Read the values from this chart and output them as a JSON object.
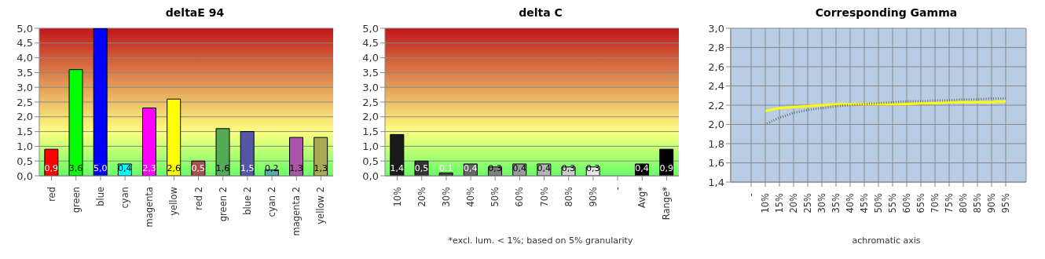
{
  "chart_data": [
    {
      "type": "bar",
      "title": "deltaE 94",
      "categories": [
        "red",
        "green",
        "blue",
        "cyan",
        "magenta",
        "yellow",
        "red 2",
        "green 2",
        "blue 2",
        "cyan 2",
        "magenta 2",
        "yellow 2"
      ],
      "values": [
        0.9,
        3.6,
        5.0,
        0.4,
        2.3,
        2.6,
        0.5,
        1.6,
        1.5,
        0.2,
        1.3,
        1.3
      ],
      "colors": [
        "#ff0000",
        "#00ff00",
        "#0000ff",
        "#00ffff",
        "#ff00ff",
        "#ffff00",
        "#a85050",
        "#55aa55",
        "#5555aa",
        "#55aaaa",
        "#aa55aa",
        "#aaaa55"
      ],
      "value_labels": [
        "0,9",
        "3,6",
        "5,0",
        "0,4",
        "2,3",
        "2,6",
        "0,5",
        "1,6",
        "1,5",
        "0,2",
        "1,3",
        "1,3"
      ],
      "ylim": [
        0,
        5
      ],
      "yticks": [
        {
          "value": 0,
          "label": "0,0"
        },
        {
          "value": 0.5,
          "label": "0,5"
        },
        {
          "value": 1,
          "label": "1,0"
        },
        {
          "value": 1.5,
          "label": "1,5"
        },
        {
          "value": 2,
          "label": "2,0"
        },
        {
          "value": 2.5,
          "label": "2,5"
        },
        {
          "value": 3,
          "label": "3,0"
        },
        {
          "value": 3.5,
          "label": "3,5"
        },
        {
          "value": 4,
          "label": "4,0"
        },
        {
          "value": 4.5,
          "label": "4,5"
        },
        {
          "value": 5,
          "label": "5,0"
        }
      ],
      "grid": "y"
    },
    {
      "type": "bar",
      "title": "delta C",
      "categories": [
        "10%",
        "20%",
        "30%",
        "40%",
        "50%",
        "60%",
        "70%",
        "80%",
        "90%",
        "-",
        "Avg*",
        "Range*"
      ],
      "values": [
        1.4,
        0.5,
        0.1,
        0.4,
        0.3,
        0.4,
        0.4,
        0.3,
        0.3,
        null,
        0.4,
        0.9
      ],
      "colors": [
        "#1a1a1a",
        "#333333",
        "#444444",
        "#666666",
        "#808080",
        "#999999",
        "#b3b3b3",
        "#cccccc",
        "#e6e6e6",
        "#000000",
        "#000000",
        "#000000"
      ],
      "value_labels": [
        "1,4",
        "0,5",
        "0,1",
        "0,4",
        "0,3",
        "0,4",
        "0,4",
        "0,3",
        "0,3",
        null,
        "0,4",
        "0,9"
      ],
      "ylim": [
        0,
        5
      ],
      "yticks": [
        {
          "value": 0,
          "label": "0,0"
        },
        {
          "value": 0.5,
          "label": "0,5"
        },
        {
          "value": 1,
          "label": "1,0"
        },
        {
          "value": 1.5,
          "label": "1,5"
        },
        {
          "value": 2,
          "label": "2,0"
        },
        {
          "value": 2.5,
          "label": "2,5"
        },
        {
          "value": 3,
          "label": "3,0"
        },
        {
          "value": 3.5,
          "label": "3,5"
        },
        {
          "value": 4,
          "label": "4,0"
        },
        {
          "value": 4.5,
          "label": "4,5"
        },
        {
          "value": 5,
          "label": "5,0"
        }
      ],
      "grid": "y",
      "annotations": [
        "*excl. lum. < 1%; based on 5% granularity"
      ]
    },
    {
      "type": "line",
      "title": "Corresponding Gamma",
      "xlabel": "achromatic axis",
      "categories": [
        "-",
        "10%",
        "15%",
        "20%",
        "25%",
        "30%",
        "35%",
        "40%",
        "45%",
        "50%",
        "55%",
        "60%",
        "65%",
        "70%",
        "75%",
        "80%",
        "85%",
        "90%",
        "95%"
      ],
      "series": [
        {
          "color": "#ffff00",
          "line_style": "solid",
          "values": [
            null,
            2.14,
            2.17,
            2.18,
            2.19,
            2.2,
            2.21,
            2.21,
            2.21,
            2.21,
            2.21,
            2.21,
            2.22,
            2.22,
            2.23,
            2.23,
            2.23,
            2.23,
            2.24
          ]
        },
        {
          "color": "#666666",
          "line_style": "dotted",
          "values": [
            null,
            2.0,
            2.07,
            2.12,
            2.15,
            2.17,
            2.19,
            2.2,
            2.21,
            2.22,
            2.23,
            2.24,
            2.24,
            2.25,
            2.25,
            2.26,
            2.26,
            2.27,
            2.27
          ]
        }
      ],
      "ylim": [
        1.4,
        3.0
      ],
      "yticks": [
        {
          "value": 1.4,
          "label": "1,4"
        },
        {
          "value": 1.6,
          "label": "1,6"
        },
        {
          "value": 1.8,
          "label": "1,8"
        },
        {
          "value": 2.0,
          "label": "2,0"
        },
        {
          "value": 2.2,
          "label": "2,2"
        },
        {
          "value": 2.4,
          "label": "2,4"
        },
        {
          "value": 2.6,
          "label": "2,6"
        },
        {
          "value": 2.8,
          "label": "2,8"
        },
        {
          "value": 3.0,
          "label": "3,0"
        }
      ],
      "grid": true,
      "marker": "none"
    }
  ]
}
